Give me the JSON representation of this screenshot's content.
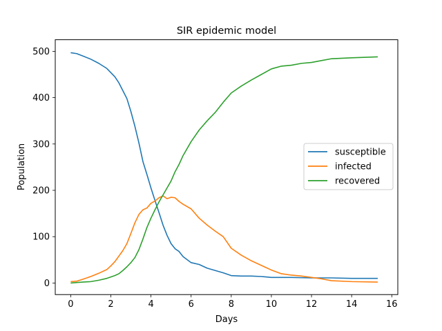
{
  "chart_data": {
    "type": "line",
    "title": "SIR epidemic model",
    "xlabel": "Days",
    "ylabel": "Population",
    "xlim": [
      -0.77,
      16.3
    ],
    "ylim": [
      -25,
      525
    ],
    "xticks": [
      0,
      2,
      4,
      6,
      8,
      10,
      12,
      14,
      16
    ],
    "yticks": [
      0,
      100,
      200,
      300,
      400,
      500
    ],
    "grid": false,
    "legend_position": "center-right",
    "series": [
      {
        "name": "susceptible",
        "color": "#1f77b4",
        "x": [
          0,
          0.3,
          0.6,
          1.0,
          1.4,
          1.8,
          2.0,
          2.2,
          2.4,
          2.6,
          2.8,
          3.0,
          3.2,
          3.4,
          3.6,
          3.8,
          4.0,
          4.2,
          4.4,
          4.6,
          4.8,
          5.0,
          5.2,
          5.4,
          5.6,
          6.0,
          6.4,
          6.8,
          7.2,
          7.6,
          8.0,
          8.5,
          9.0,
          9.5,
          10.0,
          11.0,
          12.0,
          13.0,
          14.0,
          15.3
        ],
        "y": [
          497,
          495,
          490,
          483,
          474,
          463,
          454,
          445,
          432,
          415,
          398,
          370,
          338,
          302,
          262,
          234,
          205,
          178,
          152,
          125,
          103,
          85,
          74,
          68,
          57,
          44,
          40,
          32,
          27,
          22,
          16,
          15,
          15,
          14,
          12,
          12,
          11,
          11,
          10,
          10
        ]
      },
      {
        "name": "infected",
        "color": "#ff7f0e",
        "x": [
          0,
          0.3,
          0.6,
          1.0,
          1.4,
          1.8,
          2.0,
          2.2,
          2.4,
          2.6,
          2.8,
          3.0,
          3.2,
          3.4,
          3.6,
          3.8,
          4.0,
          4.2,
          4.4,
          4.6,
          4.8,
          5.0,
          5.2,
          5.4,
          5.6,
          6.0,
          6.4,
          6.8,
          7.2,
          7.6,
          8.0,
          8.5,
          9.0,
          9.5,
          10.0,
          10.5,
          11.0,
          11.5,
          12.0,
          12.5,
          13.0,
          14.0,
          15.3
        ],
        "y": [
          3,
          4,
          8,
          14,
          21,
          29,
          37,
          46,
          58,
          70,
          85,
          107,
          130,
          148,
          158,
          162,
          172,
          177,
          184,
          188,
          182,
          185,
          184,
          176,
          170,
          160,
          140,
          125,
          112,
          100,
          75,
          60,
          48,
          38,
          28,
          20,
          17,
          15,
          12,
          9,
          5,
          3,
          2
        ]
      },
      {
        "name": "recovered",
        "color": "#2ca02c",
        "x": [
          0,
          0.3,
          0.6,
          1.0,
          1.4,
          1.8,
          2.0,
          2.2,
          2.4,
          2.6,
          2.8,
          3.0,
          3.2,
          3.4,
          3.6,
          3.8,
          4.0,
          4.2,
          4.4,
          4.6,
          4.8,
          5.0,
          5.2,
          5.4,
          5.6,
          6.0,
          6.4,
          6.8,
          7.2,
          7.6,
          8.0,
          8.5,
          9.0,
          9.5,
          10.0,
          10.5,
          11.0,
          11.5,
          12.0,
          12.5,
          13.0,
          14.0,
          15.3
        ],
        "y": [
          0,
          1,
          2,
          3,
          6,
          10,
          13,
          16,
          20,
          27,
          35,
          44,
          55,
          72,
          95,
          120,
          140,
          158,
          175,
          190,
          205,
          220,
          240,
          256,
          275,
          305,
          330,
          350,
          368,
          390,
          410,
          425,
          438,
          450,
          462,
          468,
          470,
          474,
          476,
          480,
          484,
          486,
          488
        ]
      }
    ]
  }
}
